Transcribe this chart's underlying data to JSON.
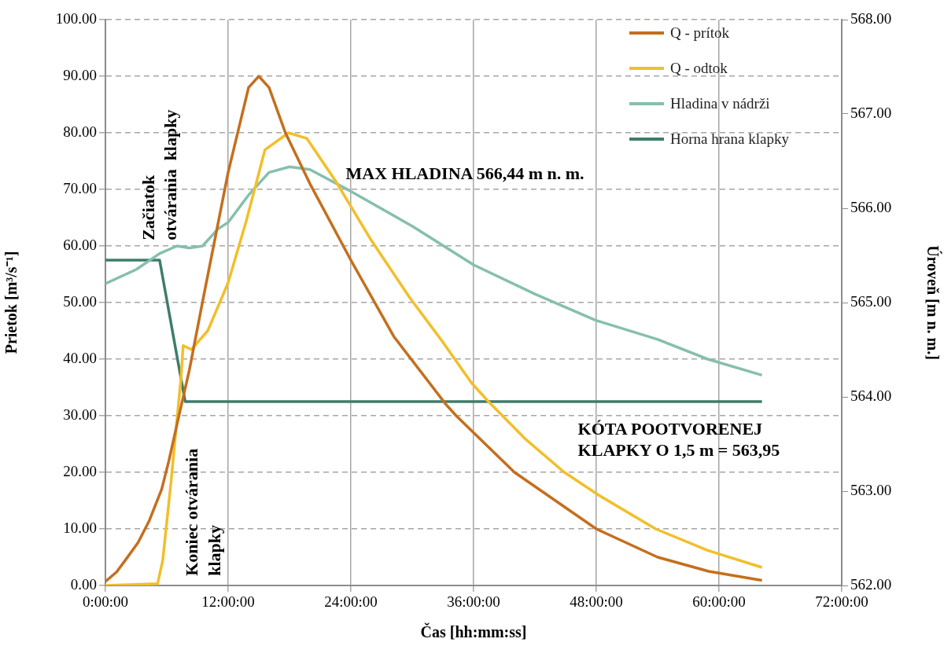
{
  "chart_data": {
    "type": "line",
    "xlabel": "Čas [hh:mm:ss]",
    "ylabel": "Prietok [m³/s⁻¹]",
    "y2label": "Úroveň [m n. m.]",
    "xlim": [
      0,
      72
    ],
    "xticks": [
      {
        "value": 0,
        "label": "0:00:00"
      },
      {
        "value": 12,
        "label": "12:00:00"
      },
      {
        "value": 24,
        "label": "24:00:00"
      },
      {
        "value": 36,
        "label": "36:00:00"
      },
      {
        "value": 48,
        "label": "48:00:00"
      },
      {
        "value": 60,
        "label": "60:00:00"
      },
      {
        "value": 72,
        "label": "72:00:00"
      }
    ],
    "ylim": [
      0,
      100
    ],
    "yticks": [
      {
        "value": 0,
        "label": "0.00"
      },
      {
        "value": 10,
        "label": "10.00"
      },
      {
        "value": 20,
        "label": "20.00"
      },
      {
        "value": 30,
        "label": "30.00"
      },
      {
        "value": 40,
        "label": "40.00"
      },
      {
        "value": 50,
        "label": "50.00"
      },
      {
        "value": 60,
        "label": "60.00"
      },
      {
        "value": 70,
        "label": "70.00"
      },
      {
        "value": 80,
        "label": "80.00"
      },
      {
        "value": 90,
        "label": "90.00"
      },
      {
        "value": 100,
        "label": "100.00"
      }
    ],
    "y2lim": [
      562,
      568
    ],
    "y2ticks": [
      {
        "value": 562,
        "label": "562.00"
      },
      {
        "value": 563,
        "label": "563.00"
      },
      {
        "value": 564,
        "label": "564.00"
      },
      {
        "value": 565,
        "label": "565.00"
      },
      {
        "value": 566,
        "label": "566.00"
      },
      {
        "value": 567,
        "label": "567.00"
      },
      {
        "value": 568,
        "label": "568.00"
      }
    ],
    "grid": true,
    "legend": "top right",
    "marker": "none",
    "line_style": "solid",
    "series": [
      {
        "name": "Q - prítok",
        "color": "#c46f1e",
        "x": [
          0,
          1.1,
          2,
          3.2,
          4.3,
          5.5,
          6.2,
          7,
          8.2,
          9.7,
          12,
          14,
          15,
          16,
          17.6,
          20,
          24,
          28.2,
          33.3,
          34.3,
          36,
          40,
          42,
          48,
          54,
          59,
          64.2
        ],
        "values": [
          0.7,
          2.4,
          4.6,
          7.6,
          11.5,
          17,
          22,
          28.5,
          38,
          52,
          73,
          88,
          90,
          88,
          80,
          71,
          57.5,
          44,
          32,
          30,
          27,
          20,
          17.5,
          10,
          5,
          2.5,
          0.9
        ]
      },
      {
        "name": "Q - odtok",
        "color": "#f2bf2a",
        "x": [
          0,
          5.1,
          5.6,
          6.4,
          6.9,
          7.4,
          7.6,
          8.4,
          10,
          12,
          13.8,
          15.6,
          17.9,
          19.7,
          22.5,
          26,
          29.7,
          33,
          35.8,
          37.4,
          41,
          44.8,
          48.2,
          53.8,
          58.9,
          64.2
        ],
        "values": [
          0,
          0.3,
          4.4,
          18,
          27.5,
          36.8,
          42.4,
          41.7,
          45,
          53.5,
          64.6,
          77,
          80,
          79,
          71.5,
          61,
          51,
          43,
          35.8,
          32.6,
          26,
          20.1,
          16,
          10,
          6.2,
          3.2
        ]
      },
      {
        "name": "Hladina v nádrži",
        "color": "#86bfae",
        "axis": "y2",
        "x": [
          0,
          3,
          5.3,
          7,
          8.2,
          9.5,
          11,
          12,
          14,
          16,
          18,
          20,
          24,
          30,
          36,
          42,
          48,
          54,
          58.9,
          64.2
        ],
        "values": [
          565.2,
          565.35,
          565.52,
          565.6,
          565.58,
          565.6,
          565.78,
          565.85,
          566.14,
          566.38,
          566.44,
          566.41,
          566.18,
          565.81,
          565.4,
          565.09,
          564.81,
          564.61,
          564.4,
          564.23
        ]
      },
      {
        "name": "Horna hrana klapky",
        "color": "#3e7d6b",
        "axis": "y2",
        "x": [
          0,
          5.3,
          7.8,
          64.2
        ],
        "values": [
          565.45,
          565.45,
          563.95,
          563.95
        ]
      }
    ],
    "annotations": [
      "Začiatok\notvárania  klapky",
      "Koniec otvárania\nklapky",
      "MAX HLADINA 566,44 m n. m.",
      "KÓTA POOTVORENEJ\nKLAPKY O 1,5 m = 563,95"
    ]
  }
}
